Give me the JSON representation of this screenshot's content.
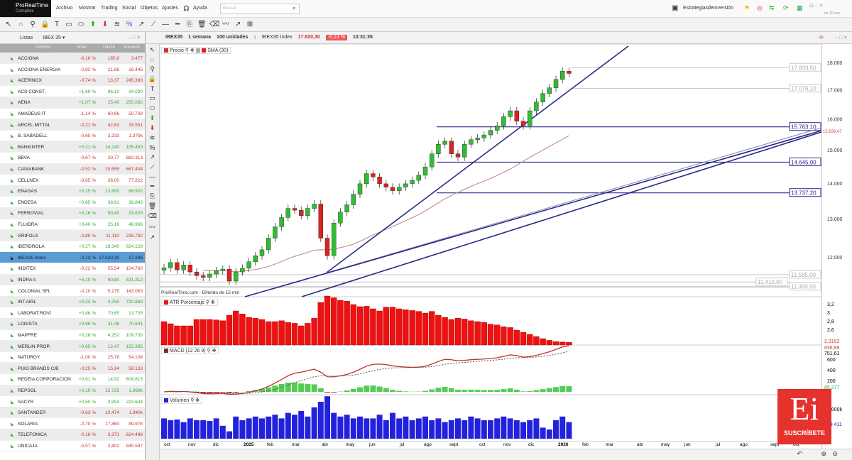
{
  "app": {
    "name": "ProRealTime",
    "edition": "Complete",
    "menu": [
      "Archivo",
      "Mostrar",
      "Trading",
      "Social",
      "Objetos",
      "Ajustes"
    ],
    "help": "Ayuda",
    "search_placeholder": "Buscar",
    "account": "EstrategiasdeInversión",
    "date": "vie 16 ene"
  },
  "watchlist": {
    "tab": "Listas",
    "list_name": "IBEX 35",
    "columns": [
      "Nombre",
      "%Var",
      "Último",
      "Volumen"
    ],
    "rows": [
      [
        "ACCIONA",
        "-0,16 %",
        "185,8",
        "3.477"
      ],
      [
        "ACCIONA ENERGIA",
        "-0,82 %",
        "21,68",
        "18.445"
      ],
      [
        "ACERINOX",
        "-0,74 %",
        "13,37",
        "245.383"
      ],
      [
        "ACS CONST.",
        "+1,69 %",
        "96,10",
        "34.030"
      ],
      [
        "AENA",
        "+1,07 %",
        "25,40",
        "255.092"
      ],
      [
        "AMADEUS IT",
        "-1,14 %",
        "60,96",
        "50.739"
      ],
      [
        "ARCEL.MITTAL",
        "-0,21 %",
        "42,62",
        "15.551"
      ],
      [
        "B. SABADELL",
        "-0,65 %",
        "3,233",
        "1.376k"
      ],
      [
        "BANKINTER",
        "+0,21 %",
        "14,240",
        "105.450"
      ],
      [
        "BBVA",
        "-0,67 %",
        "20,77",
        "882.313"
      ],
      [
        "CAIXABANK",
        "-0,52 %",
        "10,555",
        "667.404"
      ],
      [
        "CELLNEX",
        "-0,65 %",
        "26,00",
        "77.222"
      ],
      [
        "ENAGAS",
        "+0,25 %",
        "13,800",
        "66.902"
      ],
      [
        "ENDESA",
        "+0,65 %",
        "38,91",
        "36.843"
      ],
      [
        "FERROVIAL",
        "+0,16 %",
        "50,40",
        "33.829"
      ],
      [
        "FLUIDRA",
        "+0,40 %",
        "25,16",
        "48.966"
      ],
      [
        "GRIFOLS",
        "-0,89 %",
        "11,110",
        "235.782"
      ],
      [
        "IBERDROLA",
        "+0,27 %",
        "18,340",
        "624.129"
      ],
      [
        "IBEX35 Index",
        "-0,13 %",
        "17.620,30",
        "17.286"
      ],
      [
        "INDITEX",
        "-0,22 %",
        "55,54",
        "104.760"
      ],
      [
        "INDRA A",
        "+5,10 %",
        "60,80",
        "531.312"
      ],
      [
        "COLONIAL SFL",
        "-0,10 %",
        "5,175",
        "143.063"
      ],
      [
        "INT.AIRL",
        "+0,23 %",
        "4,750",
        "720.883"
      ],
      [
        "LABORAT.ROVI",
        "+0,86 %",
        "70,65",
        "13.735"
      ],
      [
        "LOGISTA",
        "+0,96 %",
        "31,46",
        "70.641"
      ],
      [
        "MAPFRE",
        "+0,28 %",
        "4,252",
        "109.730"
      ],
      [
        "MERLIN PROP.",
        "+0,65 %",
        "12,47",
        "152.395"
      ],
      [
        "NATURGY",
        "-1,00 %",
        "25,78",
        "54.108"
      ],
      [
        "PUIG BRANDS C/B",
        "-0,25 %",
        "15,94",
        "58.133"
      ],
      [
        "REDEIA CORPORACION",
        "+0,61 %",
        "14,92",
        "609.815"
      ],
      [
        "REPSOL",
        "+0,19 %",
        "15,725",
        "1.969k"
      ],
      [
        "SACYR",
        "+0,50 %",
        "3,994",
        "223.644"
      ],
      [
        "SANTANDER",
        "-0,63 %",
        "10,474",
        "1.840k"
      ],
      [
        "SOLARIA",
        "-0,70 %",
        "17,860",
        "89.978"
      ],
      [
        "TELEFONICA",
        "-0,18 %",
        "3,371",
        "624.486"
      ],
      [
        "UNICAJA",
        "-0,57 %",
        "2,802",
        "845.597"
      ]
    ],
    "selected": "IBEX35 Index"
  },
  "chart": {
    "symbol": "IBEX35",
    "period": "1 semana",
    "units": "100 unidades",
    "instrument": "IBEX35 Index",
    "last": "17.620,30",
    "change": "-0,13 %",
    "time": "10:31:35",
    "price_legend": "Precio",
    "sma_legend": "SMA (30)",
    "source_note": "ProRealTime.com - Diferido de 15 min",
    "price_axis": [
      "18.000",
      "17.000",
      "16.000",
      "15.000",
      "14.000",
      "13.000",
      "12.000"
    ],
    "levels": [
      "17.833,50",
      "17.076,10",
      "15.763,10",
      "14.645,00",
      "13.737,20",
      "11.585,00",
      "11.410,00",
      "11.300,00"
    ],
    "trendline_value": "15.638,47",
    "atr": {
      "label": "ATR Porcentaje",
      "axis": [
        "3,2",
        "3",
        "2,8",
        "2,6"
      ],
      "last": "2,3153"
    },
    "macd": {
      "label": "MACD (12 26 9)",
      "axis": [
        "600",
        "400",
        "200"
      ],
      "last": "836,89",
      "signal": "751,61",
      "hist": "85,277"
    },
    "volume": {
      "label": "Volumen",
      "axis": "1.000k",
      "last": "509.411"
    },
    "time_axis": [
      "oct",
      "nov",
      "dic",
      "2025",
      "feb",
      "mar",
      "abr",
      "may",
      "jun",
      "jul",
      "ago",
      "sept",
      "oct",
      "nov",
      "dic",
      "2026",
      "feb",
      "mar",
      "abr",
      "may",
      "jun",
      "jul",
      "ago",
      "sept",
      "oct"
    ],
    "colors": {
      "up": "#33bb33",
      "down": "#dd2222",
      "atr": "#ee1111",
      "volume": "#2222dd",
      "trend": "#2a2a8a",
      "sma": "#c08080"
    }
  },
  "chart_data": {
    "type": "candlestick",
    "interval": "weekly",
    "close": [
      11750,
      11880,
      11700,
      11820,
      11650,
      11560,
      11520,
      11600,
      11680,
      11720,
      11430,
      11650,
      11740,
      11900,
      12050,
      12200,
      12500,
      12800,
      13050,
      13300,
      13250,
      13100,
      13300,
      13420,
      12500,
      12050,
      12900,
      13200,
      13400,
      13700,
      14000,
      14300,
      14200,
      14000,
      13900,
      13800,
      13900,
      14000,
      14100,
      14250,
      14500,
      14900,
      15200,
      15300,
      14900,
      14800,
      15200,
      15350,
      15400,
      15500,
      15650,
      15800,
      16100,
      16300,
      15950,
      15800,
      16300,
      16600,
      16900,
      17100,
      17400,
      17700,
      17620
    ],
    "atr": [
      2.8,
      2.75,
      2.7,
      2.7,
      2.7,
      2.85,
      2.85,
      2.85,
      2.84,
      2.82,
      2.95,
      3.05,
      2.98,
      2.9,
      2.88,
      2.85,
      2.8,
      2.8,
      2.82,
      2.78,
      2.76,
      2.7,
      2.76,
      2.88,
      3.25,
      3.4,
      3.36,
      3.3,
      3.28,
      3.2,
      3.15,
      3.16,
      3.1,
      3.05,
      3.14,
      3.14,
      3.1,
      3.08,
      3.06,
      3.04,
      3.0,
      3.04,
      2.95,
      2.9,
      2.85,
      2.88,
      2.86,
      2.82,
      2.8,
      2.78,
      2.74,
      2.72,
      2.68,
      2.66,
      2.6,
      2.55,
      2.5,
      2.45,
      2.4,
      2.36,
      2.33,
      2.32,
      2.3153
    ],
    "volume": [
      0.55,
      0.5,
      0.52,
      0.45,
      0.55,
      0.5,
      0.5,
      0.48,
      0.55,
      0.35,
      0.2,
      0.6,
      0.5,
      0.55,
      0.6,
      0.55,
      0.6,
      0.65,
      0.55,
      0.7,
      0.65,
      0.75,
      0.6,
      0.85,
      1.0,
      1.15,
      0.7,
      0.6,
      0.65,
      0.55,
      0.6,
      0.55,
      0.55,
      0.65,
      0.5,
      0.7,
      0.55,
      0.6,
      0.5,
      0.55,
      0.6,
      0.5,
      0.55,
      0.45,
      0.5,
      0.55,
      0.5,
      0.6,
      0.55,
      0.5,
      0.5,
      0.55,
      0.6,
      0.55,
      0.5,
      0.45,
      0.5,
      0.55,
      0.3,
      0.25,
      0.5,
      0.6,
      0.45
    ]
  }
}
